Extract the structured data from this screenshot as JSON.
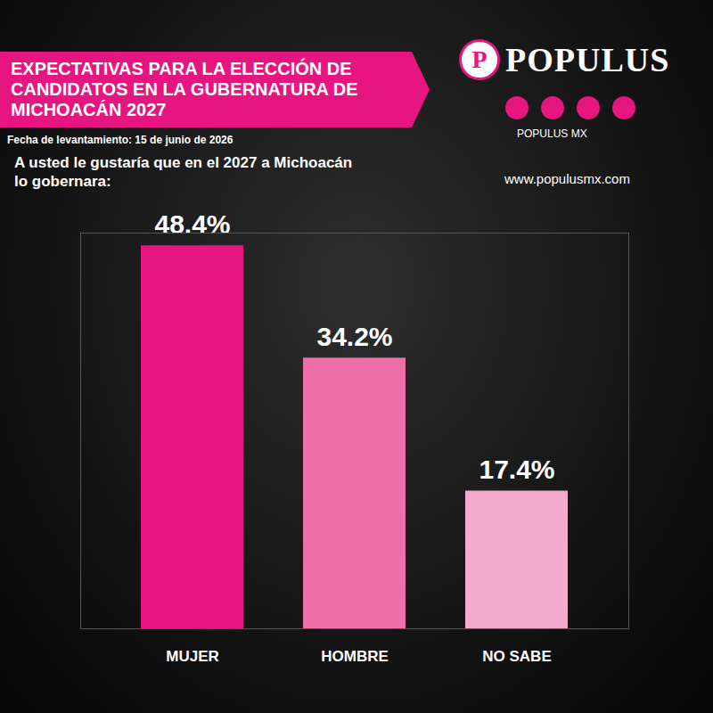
{
  "chart_data": {
    "type": "bar",
    "title": "EXPECTATIVAS PARA LA ELECCIÓN DE CANDIDATOS EN LA GUBERNATURA DE MICHOACÁN 2027",
    "subtitle": "Fecha de levantamiento: 15 de junio de 2026",
    "question": "A usted le gustaría que en el 2027 a Michoacán lo gobernara:",
    "brand": "POPULUS",
    "brand_handle": "POPULUS MX",
    "website": "www.populusmx.com",
    "categories": [
      "MUJER",
      "HOMBRE",
      "NO SABE"
    ],
    "values": [
      48.4,
      34.2,
      17.4
    ],
    "value_labels": [
      "48.4%",
      "34.2%",
      "17.4%"
    ],
    "colors": [
      "#e6157f",
      "#ef6fa9",
      "#f4aace"
    ],
    "ylim": [
      0,
      50
    ],
    "yticks": [],
    "grid": false,
    "data_labels": true,
    "tick_labels": "x"
  }
}
